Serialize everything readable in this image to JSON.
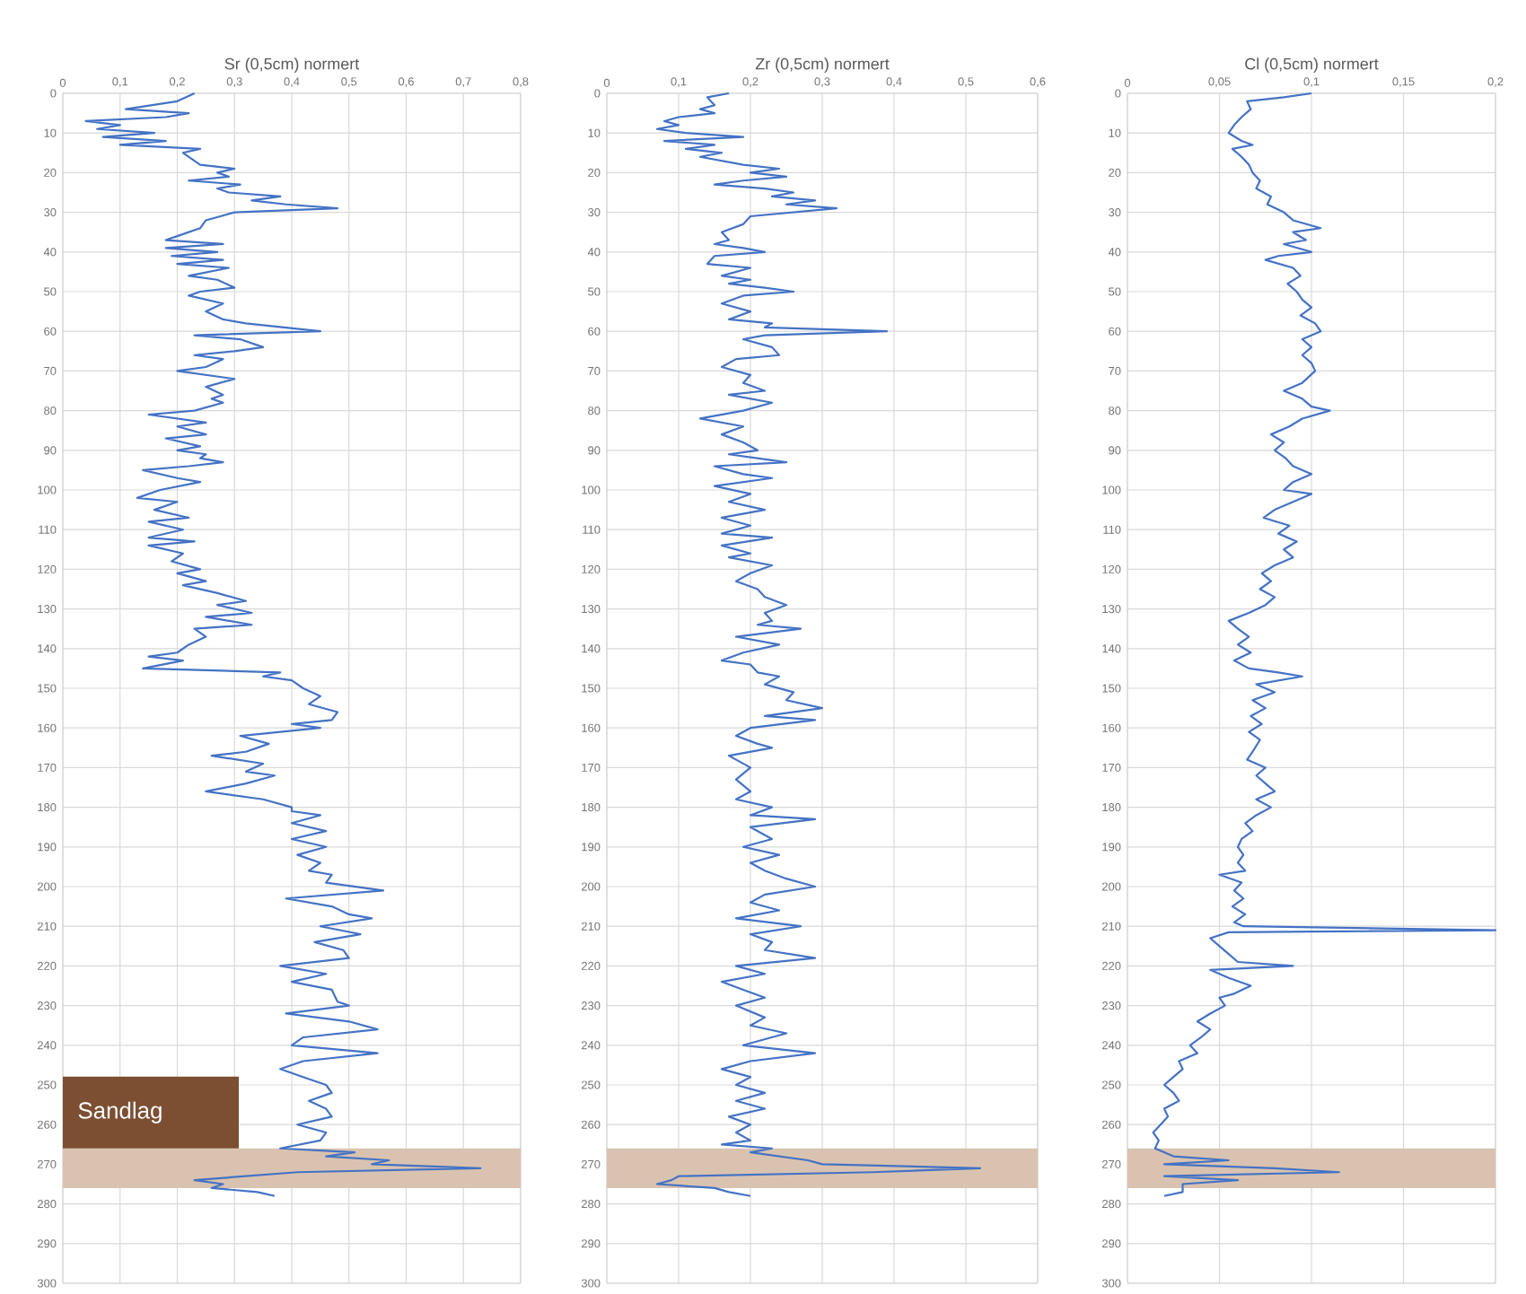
{
  "chart_data": [
    {
      "type": "line",
      "title": "Sr (0,5cm) normert",
      "color": "#4472c4",
      "grid": true,
      "line_style": "solid",
      "marker": "none",
      "xlim": [
        0,
        0.8
      ],
      "xticks": [
        0,
        {
          "value": 0.1,
          "label": "0,1"
        },
        {
          "value": 0.2,
          "label": "0,2"
        },
        {
          "value": 0.3,
          "label": "0,3"
        },
        {
          "value": 0.4,
          "label": "0,4"
        },
        {
          "value": 0.5,
          "label": "0,5"
        },
        {
          "value": 0.6,
          "label": "0,6"
        },
        {
          "value": 0.7,
          "label": "0,7"
        },
        {
          "value": 0.8,
          "label": "0,8"
        }
      ],
      "ylim": [
        300,
        0
      ],
      "yticks": [
        0,
        10,
        20,
        30,
        40,
        50,
        60,
        70,
        80,
        90,
        100,
        110,
        120,
        130,
        140,
        150,
        160,
        170,
        180,
        190,
        200,
        210,
        220,
        230,
        240,
        250,
        260,
        270,
        280,
        290,
        300
      ],
      "bands": [
        {
          "axis": "y",
          "from": 266,
          "to": 276,
          "color": "#d9c3b0",
          "label": "Sandlag"
        }
      ],
      "x": [
        0.23,
        0.2,
        0.11,
        0.22,
        0.18,
        0.04,
        0.1,
        0.06,
        0.16,
        0.07,
        0.18,
        0.1,
        0.24,
        0.21,
        0.24,
        0.3,
        0.27,
        0.29,
        0.22,
        0.31,
        0.27,
        0.29,
        0.38,
        0.33,
        0.39,
        0.48,
        0.3,
        0.25,
        0.24,
        0.2,
        0.18,
        0.28,
        0.18,
        0.27,
        0.19,
        0.28,
        0.2,
        0.29,
        0.22,
        0.27,
        0.3,
        0.24,
        0.22,
        0.28,
        0.25,
        0.28,
        0.32,
        0.45,
        0.23,
        0.31,
        0.35,
        0.3,
        0.23,
        0.28,
        0.25,
        0.2,
        0.3,
        0.25,
        0.28,
        0.26,
        0.28,
        0.23,
        0.15,
        0.25,
        0.2,
        0.25,
        0.18,
        0.24,
        0.2,
        0.25,
        0.24,
        0.28,
        0.22,
        0.14,
        0.2,
        0.24,
        0.17,
        0.13,
        0.2,
        0.16,
        0.22,
        0.15,
        0.21,
        0.15,
        0.23,
        0.15,
        0.21,
        0.19,
        0.24,
        0.2,
        0.25,
        0.21,
        0.27,
        0.32,
        0.27,
        0.33,
        0.25,
        0.33,
        0.23,
        0.25,
        0.22,
        0.2,
        0.15,
        0.21,
        0.14,
        0.38,
        0.35,
        0.4,
        0.42,
        0.45,
        0.43,
        0.48,
        0.47,
        0.4,
        0.45,
        0.31,
        0.36,
        0.32,
        0.26,
        0.35,
        0.32,
        0.37,
        0.32,
        0.25,
        0.35,
        0.4,
        0.4,
        0.45,
        0.4,
        0.46,
        0.4,
        0.46,
        0.41,
        0.45,
        0.43,
        0.47,
        0.46,
        0.56,
        0.39,
        0.47,
        0.5,
        0.54,
        0.45,
        0.52,
        0.44,
        0.49,
        0.5,
        0.38,
        0.46,
        0.4,
        0.47,
        0.48,
        0.5,
        0.39,
        0.5,
        0.55,
        0.42,
        0.4,
        0.55,
        0.42,
        0.38,
        0.42,
        0.46,
        0.47,
        0.43,
        0.46,
        0.47,
        0.41,
        0.46,
        0.45,
        0.38,
        0.51,
        0.46,
        0.57,
        0.54,
        0.73,
        0.41,
        0.23,
        0.28,
        0.26,
        0.34,
        0.37
      ],
      "values": [
        0,
        2,
        4,
        5,
        6,
        7,
        8,
        9,
        10,
        11,
        12,
        13,
        14,
        15,
        18,
        19,
        20,
        21,
        22,
        23,
        24,
        25,
        26,
        27,
        28,
        29,
        30,
        32,
        34,
        36,
        37,
        38,
        39,
        40,
        41,
        42,
        43,
        44,
        46,
        47,
        49,
        50,
        51,
        53,
        55,
        57,
        58,
        60,
        61,
        62,
        64,
        65,
        66,
        67,
        69,
        70,
        72,
        74,
        76,
        77,
        78,
        80,
        81,
        83,
        84,
        86,
        87,
        89,
        90,
        91,
        92,
        93,
        94,
        95,
        97,
        98,
        100,
        102,
        103,
        105,
        107,
        108,
        110,
        112,
        113,
        114,
        116,
        118,
        120,
        121,
        123,
        124,
        126,
        128,
        129,
        131,
        132,
        134,
        135,
        137,
        139,
        141,
        142,
        143,
        145,
        146,
        147,
        148,
        150,
        152,
        154,
        156,
        158,
        159,
        160,
        162,
        164,
        166,
        167,
        169,
        171,
        172,
        174,
        176,
        178,
        180,
        181,
        182,
        184,
        186,
        188,
        190,
        192,
        194,
        196,
        197,
        199,
        201,
        203,
        205,
        207,
        208,
        210,
        212,
        214,
        216,
        218,
        220,
        222,
        224,
        226,
        229,
        230,
        232,
        234,
        236,
        238,
        240,
        242,
        244,
        246,
        248,
        250,
        252,
        254,
        256,
        258,
        260,
        262,
        264,
        266,
        267,
        268,
        269,
        270,
        271,
        272,
        274,
        275,
        276,
        277,
        278
      ]
    },
    {
      "type": "line",
      "title": "Zr (0,5cm) normert",
      "color": "#4472c4",
      "grid": true,
      "line_style": "solid",
      "marker": "none",
      "xlim": [
        0,
        0.6
      ],
      "xticks": [
        0,
        {
          "value": 0.1,
          "label": "0,1"
        },
        {
          "value": 0.2,
          "label": "0,2"
        },
        {
          "value": 0.3,
          "label": "0,3"
        },
        {
          "value": 0.4,
          "label": "0,4"
        },
        {
          "value": 0.5,
          "label": "0,5"
        },
        {
          "value": 0.6,
          "label": "0,6"
        }
      ],
      "ylim": [
        300,
        0
      ],
      "yticks": [
        0,
        10,
        20,
        30,
        40,
        50,
        60,
        70,
        80,
        90,
        100,
        110,
        120,
        130,
        140,
        150,
        160,
        170,
        180,
        190,
        200,
        210,
        220,
        230,
        240,
        250,
        260,
        270,
        280,
        290,
        300
      ],
      "bands": [
        {
          "axis": "y",
          "from": 266,
          "to": 276,
          "color": "#d9c3b0"
        }
      ],
      "x": [
        0.17,
        0.14,
        0.15,
        0.13,
        0.15,
        0.1,
        0.08,
        0.1,
        0.07,
        0.11,
        0.19,
        0.08,
        0.15,
        0.11,
        0.16,
        0.13,
        0.19,
        0.24,
        0.2,
        0.25,
        0.19,
        0.15,
        0.22,
        0.26,
        0.23,
        0.29,
        0.25,
        0.32,
        0.2,
        0.19,
        0.16,
        0.17,
        0.15,
        0.19,
        0.22,
        0.15,
        0.14,
        0.2,
        0.16,
        0.2,
        0.17,
        0.22,
        0.26,
        0.19,
        0.16,
        0.2,
        0.17,
        0.23,
        0.22,
        0.39,
        0.22,
        0.19,
        0.23,
        0.24,
        0.18,
        0.16,
        0.2,
        0.19,
        0.22,
        0.17,
        0.23,
        0.19,
        0.13,
        0.19,
        0.16,
        0.19,
        0.21,
        0.17,
        0.25,
        0.15,
        0.19,
        0.23,
        0.15,
        0.2,
        0.17,
        0.22,
        0.16,
        0.2,
        0.16,
        0.23,
        0.16,
        0.2,
        0.17,
        0.23,
        0.2,
        0.18,
        0.21,
        0.22,
        0.25,
        0.22,
        0.23,
        0.21,
        0.27,
        0.18,
        0.24,
        0.19,
        0.16,
        0.2,
        0.21,
        0.24,
        0.22,
        0.26,
        0.25,
        0.3,
        0.22,
        0.29,
        0.2,
        0.18,
        0.21,
        0.23,
        0.17,
        0.2,
        0.18,
        0.2,
        0.18,
        0.23,
        0.2,
        0.29,
        0.2,
        0.23,
        0.19,
        0.24,
        0.2,
        0.22,
        0.25,
        0.29,
        0.22,
        0.2,
        0.24,
        0.18,
        0.27,
        0.2,
        0.23,
        0.22,
        0.29,
        0.18,
        0.22,
        0.16,
        0.19,
        0.22,
        0.18,
        0.22,
        0.2,
        0.25,
        0.19,
        0.29,
        0.2,
        0.16,
        0.2,
        0.18,
        0.22,
        0.18,
        0.22,
        0.17,
        0.2,
        0.18,
        0.2,
        0.16,
        0.23,
        0.2,
        0.28,
        0.3,
        0.52,
        0.37,
        0.1,
        0.09,
        0.07,
        0.15,
        0.17,
        0.2
      ],
      "values": [
        0,
        1,
        3,
        4,
        5,
        6,
        7,
        8,
        9,
        10,
        11,
        12,
        13,
        14,
        15,
        16,
        18,
        19,
        20,
        21,
        22,
        23,
        24,
        25,
        26,
        27,
        28,
        29,
        31,
        33,
        35,
        37,
        38,
        39,
        40,
        41,
        43,
        44,
        46,
        47,
        48,
        49,
        50,
        51,
        53,
        55,
        57,
        58,
        59,
        60,
        61,
        62,
        64,
        66,
        67,
        69,
        71,
        73,
        75,
        76,
        78,
        80,
        82,
        84,
        86,
        88,
        90,
        91,
        93,
        94,
        96,
        97,
        99,
        101,
        103,
        105,
        107,
        109,
        111,
        112,
        114,
        116,
        117,
        119,
        121,
        123,
        125,
        127,
        129,
        131,
        133,
        134,
        135,
        137,
        139,
        141,
        143,
        144,
        146,
        147,
        149,
        151,
        153,
        155,
        157,
        158,
        160,
        162,
        164,
        165,
        167,
        170,
        173,
        176,
        178,
        180,
        182,
        183,
        185,
        188,
        190,
        192,
        194,
        196,
        198,
        200,
        202,
        204,
        206,
        208,
        210,
        212,
        214,
        216,
        218,
        220,
        222,
        224,
        226,
        228,
        230,
        233,
        235,
        237,
        240,
        242,
        244,
        246,
        248,
        250,
        252,
        254,
        256,
        258,
        260,
        262,
        264,
        265,
        266,
        267,
        269,
        270,
        271,
        272,
        273,
        274,
        275,
        276,
        277,
        278
      ]
    },
    {
      "type": "line",
      "title": "Cl (0,5cm) normert",
      "color": "#4472c4",
      "grid": true,
      "line_style": "solid",
      "marker": "none",
      "xlim": [
        0,
        0.2
      ],
      "xticks": [
        0,
        {
          "value": 0.05,
          "label": "0,05"
        },
        {
          "value": 0.1,
          "label": "0,1"
        },
        {
          "value": 0.15,
          "label": "0,15"
        },
        {
          "value": 0.2,
          "label": "0,2"
        }
      ],
      "ylim": [
        300,
        0
      ],
      "yticks": [
        0,
        10,
        20,
        30,
        40,
        50,
        60,
        70,
        80,
        90,
        100,
        110,
        120,
        130,
        140,
        150,
        160,
        170,
        180,
        190,
        200,
        210,
        220,
        230,
        240,
        250,
        260,
        270,
        280,
        290,
        300
      ],
      "bands": [
        {
          "axis": "y",
          "from": 266,
          "to": 276,
          "color": "#d9c3b0"
        }
      ],
      "x": [
        0.1,
        0.085,
        0.065,
        0.067,
        0.062,
        0.058,
        0.055,
        0.062,
        0.068,
        0.057,
        0.062,
        0.066,
        0.068,
        0.072,
        0.07,
        0.078,
        0.076,
        0.085,
        0.09,
        0.105,
        0.09,
        0.097,
        0.085,
        0.1,
        0.082,
        0.075,
        0.09,
        0.094,
        0.087,
        0.092,
        0.095,
        0.1,
        0.094,
        0.102,
        0.105,
        0.095,
        0.1,
        0.095,
        0.1,
        0.102,
        0.095,
        0.085,
        0.095,
        0.1,
        0.11,
        0.095,
        0.088,
        0.078,
        0.085,
        0.08,
        0.086,
        0.09,
        0.1,
        0.09,
        0.085,
        0.1,
        0.09,
        0.08,
        0.074,
        0.088,
        0.082,
        0.092,
        0.085,
        0.09,
        0.08,
        0.073,
        0.078,
        0.072,
        0.08,
        0.075,
        0.066,
        0.055,
        0.06,
        0.066,
        0.06,
        0.067,
        0.058,
        0.066,
        0.082,
        0.095,
        0.07,
        0.08,
        0.068,
        0.075,
        0.067,
        0.073,
        0.066,
        0.072,
        0.068,
        0.065,
        0.075,
        0.07,
        0.075,
        0.08,
        0.07,
        0.078,
        0.07,
        0.064,
        0.068,
        0.062,
        0.06,
        0.063,
        0.06,
        0.064,
        0.05,
        0.062,
        0.058,
        0.063,
        0.057,
        0.064,
        0.058,
        0.063,
        0.2,
        0.055,
        0.045,
        0.05,
        0.055,
        0.06,
        0.09,
        0.045,
        0.055,
        0.067,
        0.058,
        0.05,
        0.053,
        0.045,
        0.038,
        0.045,
        0.04,
        0.034,
        0.038,
        0.028,
        0.03,
        0.025,
        0.02,
        0.025,
        0.028,
        0.02,
        0.022,
        0.018,
        0.014,
        0.017,
        0.015,
        0.025,
        0.055,
        0.02,
        0.08,
        0.115,
        0.02,
        0.06,
        0.03,
        0.03,
        0.02
      ],
      "values": [
        0,
        1,
        2,
        4,
        6,
        8,
        10,
        12,
        13,
        14,
        16,
        18,
        20,
        22,
        24,
        26,
        28,
        30,
        32,
        34,
        35,
        37,
        38,
        40,
        41,
        42,
        44,
        46,
        48,
        50,
        52,
        54,
        56,
        58,
        60,
        62,
        64,
        66,
        68,
        70,
        73,
        75,
        77,
        79,
        80,
        82,
        84,
        86,
        88,
        90,
        92,
        94,
        96,
        98,
        100,
        101,
        103,
        105,
        107,
        109,
        111,
        113,
        115,
        117,
        119,
        121,
        123,
        125,
        127,
        129,
        131,
        133,
        135,
        137,
        139,
        141,
        143,
        145,
        146,
        147,
        149,
        151,
        153,
        155,
        157,
        159,
        161,
        163,
        166,
        168,
        170,
        172,
        174,
        176,
        178,
        180,
        182,
        184,
        186,
        188,
        190,
        192,
        194,
        196,
        197,
        199,
        201,
        203,
        205,
        207,
        209,
        210,
        211,
        211.5,
        213,
        215,
        217,
        219,
        220,
        221,
        223,
        225,
        227,
        228,
        230,
        232,
        234,
        236,
        238,
        240,
        242,
        244,
        246,
        248,
        250,
        252,
        254,
        256,
        258,
        260,
        262,
        264,
        266,
        268,
        269,
        270,
        271,
        272,
        273,
        274,
        275,
        277,
        278
      ]
    }
  ]
}
